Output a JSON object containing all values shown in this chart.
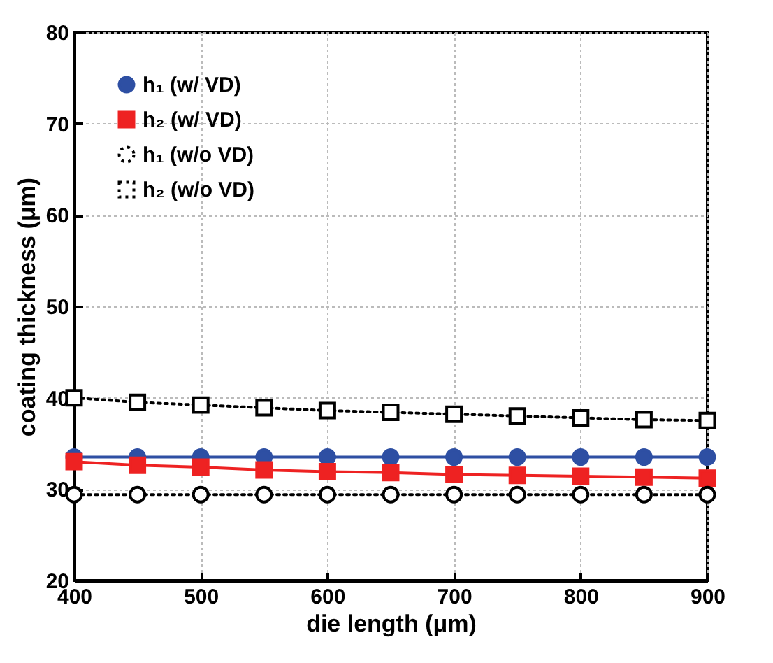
{
  "chart_data": {
    "type": "line",
    "xlabel": "die length (μm)",
    "ylabel": "coating thickness (μm)",
    "x": [
      400,
      450,
      500,
      550,
      600,
      650,
      700,
      750,
      800,
      850,
      900
    ],
    "xlim": [
      400,
      900
    ],
    "xticks": [
      400,
      500,
      600,
      700,
      800,
      900
    ],
    "ylim": [
      20,
      80
    ],
    "yticks": [
      20,
      30,
      40,
      50,
      60,
      70,
      80
    ],
    "grid": true,
    "legend": "top left",
    "series": [
      {
        "name": "h₁ (w/ VD)",
        "color": "#2e4fa3",
        "marker": "circle",
        "line_style": "solid",
        "values": [
          33.5,
          33.5,
          33.5,
          33.5,
          33.5,
          33.5,
          33.5,
          33.5,
          33.5,
          33.5,
          33.5
        ]
      },
      {
        "name": "h₂ (w/ VD)",
        "color": "#ee2222",
        "marker": "square",
        "line_style": "solid",
        "values": [
          33.0,
          32.6,
          32.4,
          32.1,
          31.9,
          31.8,
          31.6,
          31.5,
          31.4,
          31.3,
          31.2
        ]
      },
      {
        "name": "h₁ (w/o VD)",
        "color": "#000000",
        "marker": "circle",
        "line_style": "dotted",
        "values": [
          29.4,
          29.4,
          29.4,
          29.4,
          29.4,
          29.4,
          29.4,
          29.4,
          29.4,
          29.4,
          29.4
        ]
      },
      {
        "name": "h₂ (w/o VD)",
        "color": "#000000",
        "marker": "square",
        "line_style": "dotted",
        "values": [
          40.0,
          39.5,
          39.2,
          38.9,
          38.6,
          38.4,
          38.2,
          38.0,
          37.8,
          37.6,
          37.5
        ]
      }
    ]
  }
}
